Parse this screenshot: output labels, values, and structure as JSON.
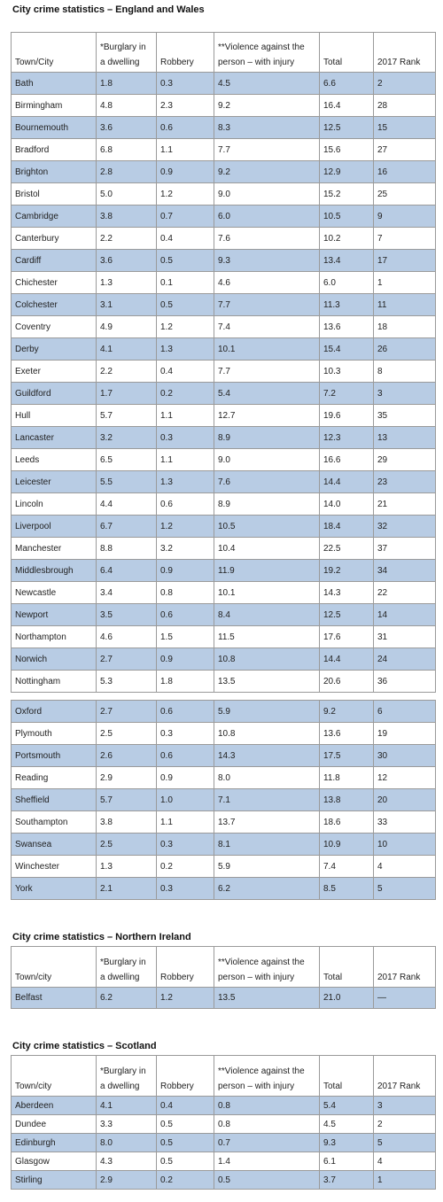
{
  "headers": {
    "town_city": "Town/City",
    "town_city_lower": "Town/city",
    "burglary_line1": "*Burglary  in",
    "burglary_line2": "a dwelling",
    "robbery": "Robbery",
    "violence_line1": "**Violence against the",
    "violence_line2": "person – with injury",
    "total": "Total",
    "rank": "2017 Rank"
  },
  "sections": [
    {
      "title": "City crime statistics – England and Wales",
      "rows": [
        [
          "Bath",
          "1.8",
          "0.3",
          "4.5",
          "6.6",
          "2"
        ],
        [
          "Birmingham",
          "4.8",
          "2.3",
          "9.2",
          "16.4",
          "28"
        ],
        [
          "Bournemouth",
          "3.6",
          "0.6",
          "8.3",
          "12.5",
          "15"
        ],
        [
          "Bradford",
          "6.8",
          "1.1",
          "7.7",
          "15.6",
          "27"
        ],
        [
          "Brighton",
          "2.8",
          "0.9",
          "9.2",
          "12.9",
          "16"
        ],
        [
          "Bristol",
          "5.0",
          "1.2",
          "9.0",
          "15.2",
          "25"
        ],
        [
          "Cambridge",
          "3.8",
          "0.7",
          "6.0",
          "10.5",
          "9"
        ],
        [
          "Canterbury",
          "2.2",
          "0.4",
          "7.6",
          "10.2",
          "7"
        ],
        [
          "Cardiff",
          "3.6",
          "0.5",
          "9.3",
          "13.4",
          "17"
        ],
        [
          "Chichester",
          "1.3",
          "0.1",
          "4.6",
          "6.0",
          "1"
        ],
        [
          "Colchester",
          "3.1",
          "0.5",
          "7.7",
          "11.3",
          "11"
        ],
        [
          "Coventry",
          "4.9",
          "1.2",
          "7.4",
          "13.6",
          "18"
        ],
        [
          "Derby",
          "4.1",
          "1.3",
          "10.1",
          "15.4",
          "26"
        ],
        [
          "Exeter",
          "2.2",
          "0.4",
          "7.7",
          "10.3",
          "8"
        ],
        [
          "Guildford",
          "1.7",
          "0.2",
          "5.4",
          "7.2",
          "3"
        ],
        [
          "Hull",
          "5.7",
          "1.1",
          "12.7",
          "19.6",
          "35"
        ],
        [
          "Lancaster",
          "3.2",
          "0.3",
          "8.9",
          "12.3",
          "13"
        ],
        [
          "Leeds",
          "6.5",
          "1.1",
          "9.0",
          "16.6",
          "29"
        ],
        [
          "Leicester",
          "5.5",
          "1.3",
          "7.6",
          "14.4",
          "23"
        ],
        [
          "Lincoln",
          "4.4",
          "0.6",
          "8.9",
          "14.0",
          "21"
        ],
        [
          "Liverpool",
          "6.7",
          "1.2",
          "10.5",
          "18.4",
          "32"
        ],
        [
          "Manchester",
          "8.8",
          "3.2",
          "10.4",
          "22.5",
          "37"
        ],
        [
          "Middlesbrough",
          "6.4",
          "0.9",
          "11.9",
          "19.2",
          "34"
        ],
        [
          "Newcastle",
          "3.4",
          "0.8",
          "10.1",
          "14.3",
          "22"
        ],
        [
          "Newport",
          "3.5",
          "0.6",
          "8.4",
          "12.5",
          "14"
        ],
        [
          "Northampton",
          "4.6",
          "1.5",
          "11.5",
          "17.6",
          "31"
        ],
        [
          "Norwich",
          "2.7",
          "0.9",
          "10.8",
          "14.4",
          "24"
        ],
        [
          "Nottingham",
          "5.3",
          "1.8",
          "13.5",
          "20.6",
          "36"
        ]
      ],
      "rows2": [
        [
          "Oxford",
          "2.7",
          "0.6",
          "5.9",
          "9.2",
          "6"
        ],
        [
          "Plymouth",
          "2.5",
          "0.3",
          "10.8",
          "13.6",
          "19"
        ],
        [
          "Portsmouth",
          "2.6",
          "0.6",
          "14.3",
          "17.5",
          "30"
        ],
        [
          "Reading",
          "2.9",
          "0.9",
          "8.0",
          "11.8",
          "12"
        ],
        [
          "Sheffield",
          "5.7",
          "1.0",
          "7.1",
          "13.8",
          "20"
        ],
        [
          "Southampton",
          "3.8",
          "1.1",
          "13.7",
          "18.6",
          "33"
        ],
        [
          "Swansea",
          "2.5",
          "0.3",
          "8.1",
          "10.9",
          "10"
        ],
        [
          "Winchester",
          "1.3",
          "0.2",
          "5.9",
          "7.4",
          "4"
        ],
        [
          "York",
          "2.1",
          "0.3",
          "6.2",
          "8.5",
          "5"
        ]
      ]
    },
    {
      "title": "City crime statistics – Northern Ireland",
      "rows": [
        [
          "Belfast",
          "6.2",
          "1.2",
          "13.5",
          "21.0",
          "—"
        ]
      ]
    },
    {
      "title": "City crime statistics – Scotland",
      "rows": [
        [
          "Aberdeen",
          "4.1",
          "0.4",
          "0.8",
          "5.4",
          "3"
        ],
        [
          "Dundee",
          "3.3",
          "0.5",
          "0.8",
          "4.5",
          "2"
        ],
        [
          "Edinburgh",
          "8.0",
          "0.5",
          "0.7",
          "9.3",
          "5"
        ],
        [
          "Glasgow",
          "4.3",
          "0.5",
          "1.4",
          "6.1",
          "4"
        ],
        [
          "Stirling",
          "2.9",
          "0.2",
          "0.5",
          "3.7",
          "1"
        ]
      ]
    }
  ]
}
